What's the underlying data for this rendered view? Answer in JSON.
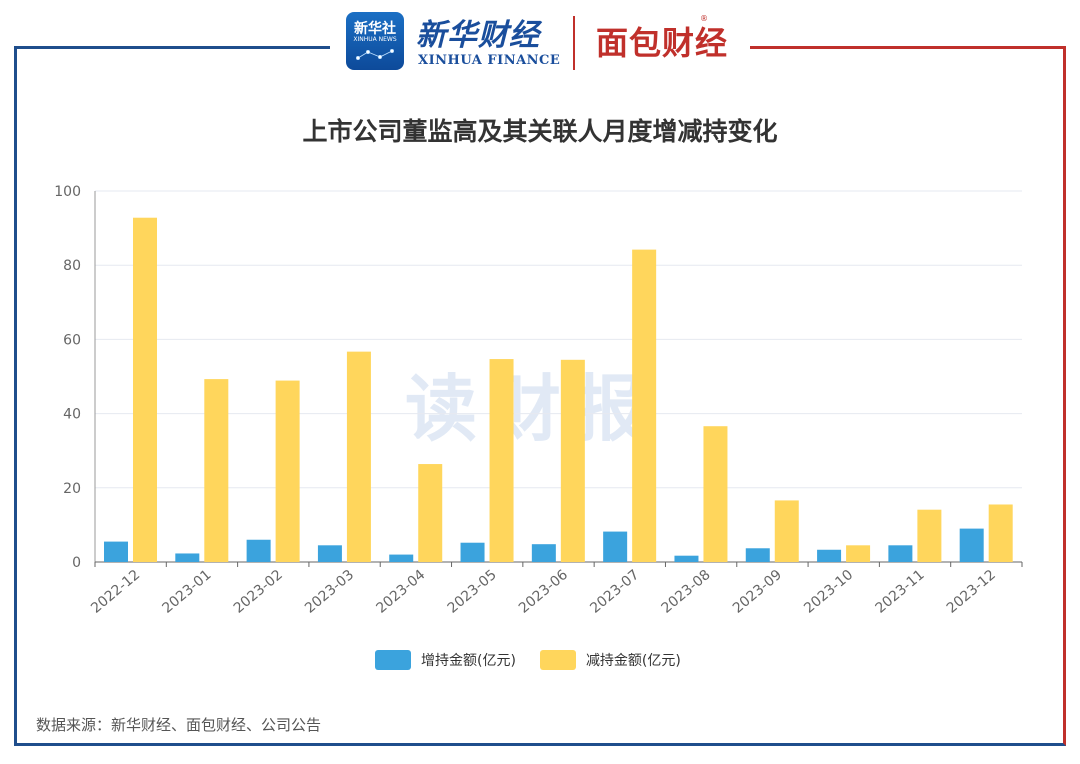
{
  "header": {
    "xinhua_logo_top": "新华社",
    "xinhua_logo_sub": "XINHUA NEWS",
    "brand_cn": "新华财经",
    "brand_en": "XINHUA FINANCE",
    "partner_brand": "面包财经",
    "registered_mark": "®"
  },
  "watermark": "读财报",
  "source": "数据来源：新华财经、面包财经、公司公告",
  "colors": {
    "increase": "#3ba3dd",
    "decrease": "#ffd65c",
    "frame_left": "#1f4e8c",
    "frame_right": "#c0302b"
  },
  "chart_data": {
    "type": "bar",
    "title": "上市公司董监高及其关联人月度增减持变化",
    "categories": [
      "2022-12",
      "2023-01",
      "2023-02",
      "2023-03",
      "2023-04",
      "2023-05",
      "2023-06",
      "2023-07",
      "2023-08",
      "2023-09",
      "2023-10",
      "2023-11",
      "2023-12"
    ],
    "series": [
      {
        "name": "增持金额(亿元)",
        "values": [
          5.5,
          2.3,
          6.0,
          4.5,
          2.0,
          5.2,
          4.8,
          8.2,
          1.7,
          3.7,
          3.3,
          4.5,
          9.0
        ]
      },
      {
        "name": "减持金额(亿元)",
        "values": [
          92.8,
          49.3,
          48.9,
          56.7,
          26.4,
          54.7,
          54.5,
          84.2,
          36.6,
          16.6,
          4.5,
          14.1,
          15.5
        ]
      }
    ],
    "ylim": [
      0,
      100
    ],
    "yticks": [
      0,
      20,
      40,
      60,
      80,
      100
    ],
    "grid": true,
    "legend_position": "bottom-center"
  }
}
